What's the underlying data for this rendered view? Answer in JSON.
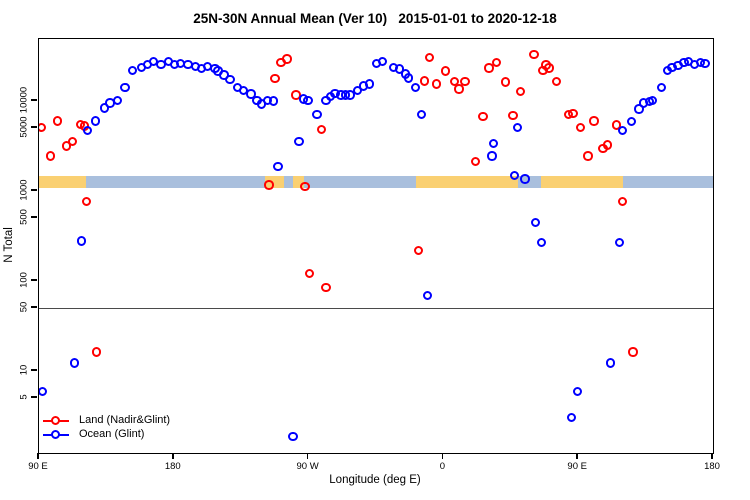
{
  "title": "25N-30N Annual Mean (Ver 10)   2015-01-01 to 2020-12-18",
  "legend": {
    "items": [
      {
        "key": "land",
        "label": "Land (Nadir&Glint)",
        "color": "#ff0000"
      },
      {
        "key": "ocean",
        "label": "Ocean (Glint)",
        "color": "#0000ff"
      }
    ]
  },
  "chart_data": {
    "type": "scatter",
    "title": "25N-30N Annual Mean (Ver 10)   2015-01-01 to 2020-12-18",
    "xlabel": "Longitude (deg E)",
    "ylabel": "N Total",
    "grid": false,
    "legend_position": "inside-bottom-left",
    "x_axis": {
      "range": [
        90,
        540
      ],
      "note": "longitude in deg E increasing eastward, wrapping past 180 and 360",
      "ticks": [
        {
          "pos": 90,
          "label": "90 E"
        },
        {
          "pos": 180,
          "label": "180"
        },
        {
          "pos": 270,
          "label": "90 W"
        },
        {
          "pos": 360,
          "label": "0"
        },
        {
          "pos": 450,
          "label": "90 E"
        },
        {
          "pos": 540,
          "label": "180"
        }
      ]
    },
    "y_axis": {
      "scale": "log",
      "range": [
        1.2,
        49000
      ],
      "ticks": [
        5,
        10,
        50,
        100,
        500,
        1000,
        5000,
        10000
      ]
    },
    "reference_line_y": 50,
    "surface_band": {
      "y_range": [
        1080,
        1470
      ],
      "land_color": "#fad072",
      "ocean_color": "#a9bfdd",
      "segments": [
        {
          "type": "land",
          "from": 90,
          "to": 121.5
        },
        {
          "type": "ocean",
          "from": 121.5,
          "to": 241
        },
        {
          "type": "land",
          "from": 241,
          "to": 253.5
        },
        {
          "type": "ocean",
          "from": 253.5,
          "to": 259.5
        },
        {
          "type": "land",
          "from": 259.5,
          "to": 267
        },
        {
          "type": "ocean",
          "from": 267,
          "to": 342
        },
        {
          "type": "land",
          "from": 342,
          "to": 410
        },
        {
          "type": "ocean",
          "from": 410,
          "to": 425
        },
        {
          "type": "land",
          "from": 425,
          "to": 480
        },
        {
          "type": "ocean",
          "from": 480,
          "to": 540
        }
      ]
    },
    "series": [
      {
        "key": "land",
        "name": "Land (Nadir&Glint)",
        "color": "#ff0000",
        "points": [
          [
            92,
            5000
          ],
          [
            98,
            2400
          ],
          [
            103,
            5900
          ],
          [
            109,
            3100
          ],
          [
            113,
            3500
          ],
          [
            118,
            5400
          ],
          [
            121,
            5200
          ],
          [
            122,
            755
          ],
          [
            129,
            16
          ],
          [
            248,
            17500
          ],
          [
            252,
            26500
          ],
          [
            256,
            28800
          ],
          [
            262,
            11400
          ],
          [
            279,
            4760
          ],
          [
            244,
            1140
          ],
          [
            268,
            1100
          ],
          [
            271,
            119
          ],
          [
            282,
            83
          ],
          [
            344,
            215
          ],
          [
            348,
            16400
          ],
          [
            351,
            29700
          ],
          [
            356,
            15100
          ],
          [
            362,
            21100
          ],
          [
            368,
            16100
          ],
          [
            371,
            13400
          ],
          [
            375,
            16200
          ],
          [
            382,
            2100
          ],
          [
            387,
            6600
          ],
          [
            391,
            22800
          ],
          [
            396,
            26500
          ],
          [
            402,
            16000
          ],
          [
            407,
            6800
          ],
          [
            412,
            12500
          ],
          [
            421,
            32400
          ],
          [
            427,
            21300
          ],
          [
            429,
            24700
          ],
          [
            431,
            22800
          ],
          [
            436,
            16200
          ],
          [
            444,
            6900
          ],
          [
            447,
            7100
          ],
          [
            452,
            5000
          ],
          [
            457,
            2400
          ],
          [
            461,
            5900
          ],
          [
            467,
            2900
          ],
          [
            470,
            3200
          ],
          [
            476,
            5300
          ],
          [
            480,
            755
          ],
          [
            487,
            16
          ]
        ]
      },
      {
        "key": "ocean",
        "name": "Ocean (Glint)",
        "color": "#0000ff",
        "points": [
          [
            123,
            4600
          ],
          [
            128,
            5900
          ],
          [
            134,
            8200
          ],
          [
            138,
            9300
          ],
          [
            143,
            10000
          ],
          [
            148,
            13900
          ],
          [
            153,
            21400
          ],
          [
            159,
            23300
          ],
          [
            163,
            24900
          ],
          [
            167,
            27100
          ],
          [
            172,
            24900
          ],
          [
            177,
            27100
          ],
          [
            181,
            24900
          ],
          [
            185,
            25700
          ],
          [
            190,
            24900
          ],
          [
            195,
            23800
          ],
          [
            199,
            22700
          ],
          [
            203,
            23800
          ],
          [
            208,
            22700
          ],
          [
            210,
            21100
          ],
          [
            214,
            19100
          ],
          [
            218,
            17100
          ],
          [
            223,
            13900
          ],
          [
            227,
            12900
          ],
          [
            232,
            11700
          ],
          [
            236,
            10000
          ],
          [
            239,
            9100
          ],
          [
            243,
            10000
          ],
          [
            247,
            9800
          ],
          [
            250,
            1850
          ],
          [
            119,
            272
          ],
          [
            114,
            12
          ],
          [
            93,
            5.8
          ],
          [
            264,
            3500
          ],
          [
            267,
            10300
          ],
          [
            270,
            10000
          ],
          [
            276,
            7000
          ],
          [
            282,
            10000
          ],
          [
            285,
            11100
          ],
          [
            288,
            11900
          ],
          [
            292,
            11400
          ],
          [
            295,
            11400
          ],
          [
            298,
            11400
          ],
          [
            303,
            12900
          ],
          [
            307,
            14400
          ],
          [
            311,
            15200
          ],
          [
            316,
            25700
          ],
          [
            320,
            27100
          ],
          [
            327,
            23300
          ],
          [
            331,
            22200
          ],
          [
            335,
            19500
          ],
          [
            337,
            17700
          ],
          [
            342,
            13900
          ],
          [
            346,
            6900
          ],
          [
            350,
            68
          ],
          [
            260,
            1.85
          ],
          [
            393,
            2400
          ],
          [
            394,
            3300
          ],
          [
            408,
            1470
          ],
          [
            410,
            5000
          ],
          [
            415,
            1330
          ],
          [
            422,
            440
          ],
          [
            426,
            265
          ],
          [
            446,
            3.0
          ],
          [
            450,
            5.8
          ],
          [
            472,
            12
          ],
          [
            478,
            265
          ],
          [
            480,
            4600
          ],
          [
            486,
            5800
          ],
          [
            491,
            8000
          ],
          [
            494,
            9300
          ],
          [
            498,
            9700
          ],
          [
            500,
            10000
          ],
          [
            506,
            13900
          ],
          [
            510,
            21400
          ],
          [
            513,
            23300
          ],
          [
            517,
            24500
          ],
          [
            521,
            26500
          ],
          [
            524,
            27100
          ],
          [
            528,
            24900
          ],
          [
            532,
            26500
          ],
          [
            535,
            25700
          ]
        ]
      }
    ]
  }
}
